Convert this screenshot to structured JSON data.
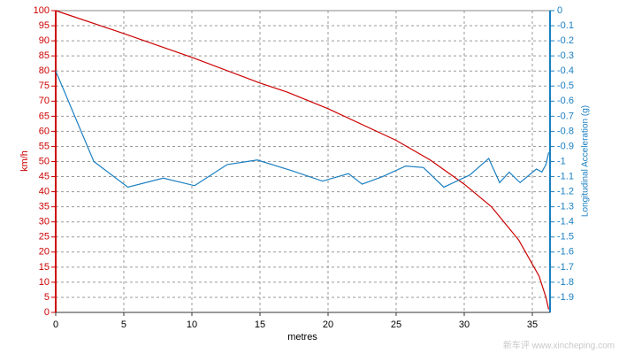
{
  "chart_data": {
    "type": "line",
    "xlabel": "metres",
    "ylabel": "km/h",
    "y2label": "Longitudinal Acceleration (g)",
    "watermark": "新车评 www.xincheping.com",
    "xlim": [
      0,
      36.3
    ],
    "xticks": [
      0,
      5,
      10,
      15,
      20,
      25,
      30,
      35
    ],
    "ylim": [
      0,
      100
    ],
    "yticks": [
      0,
      5,
      10,
      15,
      20,
      25,
      30,
      35,
      40,
      45,
      50,
      55,
      60,
      65,
      70,
      75,
      80,
      85,
      90,
      95,
      100
    ],
    "y2lim": [
      -2,
      0
    ],
    "y2ticks": [
      0,
      -0.1,
      -0.2,
      -0.3,
      -0.4,
      -0.5,
      -0.6,
      -0.7,
      -0.8,
      -0.9,
      -1,
      -1.1,
      -1.2,
      -1.3,
      -1.4,
      -1.5,
      -1.6,
      -1.7,
      -1.8,
      -1.9
    ],
    "grid": true,
    "ycolor": "#cc0000",
    "y2color": "#1a7fc1",
    "series": [
      {
        "color": "#cc0000",
        "x": [
          0,
          5,
          10,
          15,
          17,
          20,
          25,
          27.5,
          30,
          32,
          34,
          35,
          35.5,
          36,
          36.2
        ],
        "values": [
          100,
          92.4,
          84.5,
          76,
          73,
          67.5,
          57,
          50.5,
          42.5,
          35,
          24,
          16,
          12,
          5,
          1
        ]
      },
      {
        "color": "#1a7fc1",
        "axis": "y2",
        "x": [
          0,
          2.8,
          5.3,
          7.9,
          10.2,
          12.6,
          14.8,
          17.3,
          19.6,
          21.5,
          22.5,
          24,
          25.7,
          27,
          28.5,
          30.4,
          31.8,
          32.6,
          33.3,
          34.1,
          35.3,
          35.7,
          36,
          36.2
        ],
        "values": [
          -0.4,
          -1,
          -1.17,
          -1.11,
          -1.16,
          -1.02,
          -0.99,
          -1.06,
          -1.13,
          -1.08,
          -1.15,
          -1.1,
          -1.03,
          -1.04,
          -1.17,
          -1.09,
          -0.98,
          -1.14,
          -1.07,
          -1.14,
          -1.05,
          -1.07,
          -1.02,
          -0.94
        ]
      }
    ]
  }
}
